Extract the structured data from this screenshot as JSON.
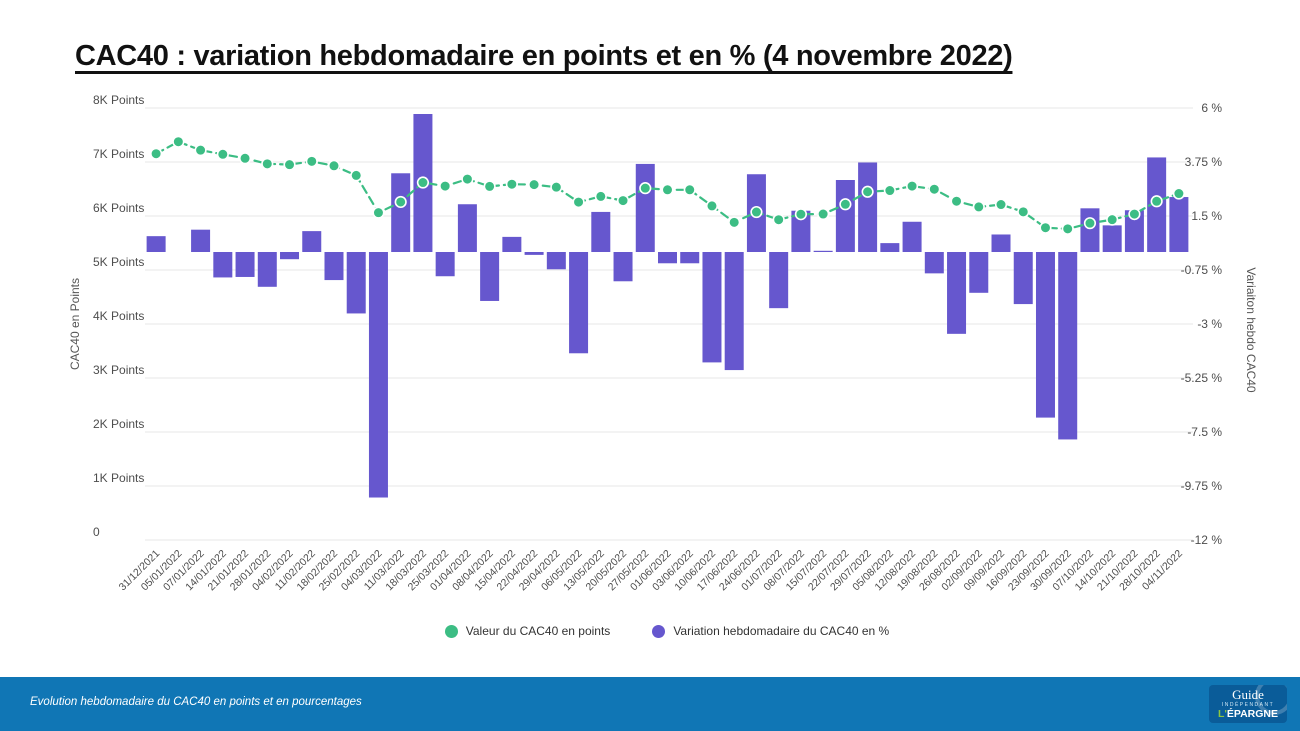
{
  "page": {
    "title": "CAC40 : variation hebdomadaire en points et en % (4 novembre 2022)"
  },
  "legend": [
    {
      "label": "Valeur du CAC40 en points",
      "color": "#3cbd84"
    },
    {
      "label": "Variation hebdomadaire du CAC40 en %",
      "color": "#6657ce"
    }
  ],
  "footer": {
    "caption": "Evolution hebdomadaire du CAC40 en points et en pourcentages",
    "bg": "#1076b5",
    "logo": {
      "line1": "Guide",
      "line2": "INDÉPENDANT",
      "line3": "L'ÉPARGNE"
    }
  },
  "chart_data": {
    "type": "bar",
    "title": "CAC40 : variation hebdomadaire en points et en % (4 novembre 2022)",
    "grid": true,
    "legend_position": "bottom",
    "categories": [
      "31/12/2021",
      "05/01/2022",
      "07/01/2022",
      "14/01/2022",
      "21/01/2022",
      "28/01/2022",
      "04/02/2022",
      "11/02/2022",
      "18/02/2022",
      "25/02/2022",
      "04/03/2022",
      "11/03/2022",
      "18/03/2022",
      "25/03/2022",
      "01/04/2022",
      "08/04/2022",
      "15/04/2022",
      "22/04/2022",
      "29/04/2022",
      "06/05/2022",
      "13/05/2022",
      "20/05/2022",
      "27/05/2022",
      "01/06/2022",
      "03/06/2022",
      "10/06/2022",
      "17/06/2022",
      "24/06/2022",
      "01/07/2022",
      "08/07/2022",
      "15/07/2022",
      "22/07/2022",
      "29/07/2022",
      "05/08/2022",
      "12/08/2022",
      "19/08/2022",
      "26/08/2022",
      "02/09/2022",
      "09/09/2022",
      "16/09/2022",
      "23/09/2022",
      "30/09/2022",
      "07/10/2022",
      "14/10/2022",
      "21/10/2022",
      "28/10/2022",
      "04/11/2022"
    ],
    "series": [
      {
        "name": "Valeur du CAC40 en points",
        "type": "line",
        "axis": "left",
        "color": "#3cbd84",
        "values": [
          7153,
          7376,
          7219,
          7143,
          7069,
          6966,
          6951,
          7012,
          6930,
          6752,
          6062,
          6260,
          6620,
          6554,
          6684,
          6548,
          6589,
          6581,
          6534,
          6258,
          6363,
          6285,
          6516,
          6485,
          6485,
          6187,
          5883,
          6073,
          5931,
          6033,
          6036,
          6217,
          6449,
          6472,
          6554,
          6496,
          6274,
          6168,
          6212,
          6077,
          5783,
          5762,
          5867,
          5932,
          6035,
          6273,
          6416
        ]
      },
      {
        "name": "Variation hebdomadaire du CAC40 en %",
        "type": "bar",
        "axis": "right",
        "color": "#6657ce",
        "values": [
          0.66,
          0,
          0.93,
          -1.06,
          -1.04,
          -1.45,
          -0.3,
          0.87,
          -1.17,
          -2.56,
          -10.23,
          3.28,
          5.75,
          -1.01,
          1.99,
          -2.04,
          0.63,
          -0.12,
          -0.72,
          -4.22,
          1.67,
          -1.22,
          3.67,
          -0.47,
          -0.47,
          -4.6,
          -4.92,
          3.24,
          -2.34,
          1.72,
          0.05,
          3.0,
          3.73,
          0.37,
          1.26,
          -0.89,
          -3.41,
          -1.7,
          0.73,
          -2.17,
          -6.9,
          -7.81,
          1.82,
          1.11,
          1.74,
          3.94,
          2.29
        ]
      }
    ],
    "left_axis": {
      "title": "CAC40 en Points",
      "min": 0,
      "max": 8000,
      "ticks": [
        "8K Points",
        "7K Points",
        "6K Points",
        "5K Points",
        "4K Points",
        "3K Points",
        "2K Points",
        "1K Points",
        "0"
      ]
    },
    "right_axis": {
      "title": "Variaiton hebdo CAC40",
      "min": -12,
      "max": 6,
      "ticks": [
        "6 %",
        "3.75 %",
        "1.5 %",
        "-0.75 %",
        "-3 %",
        "-5.25 %",
        "-7.5 %",
        "-9.75 %",
        "-12 %"
      ]
    }
  }
}
